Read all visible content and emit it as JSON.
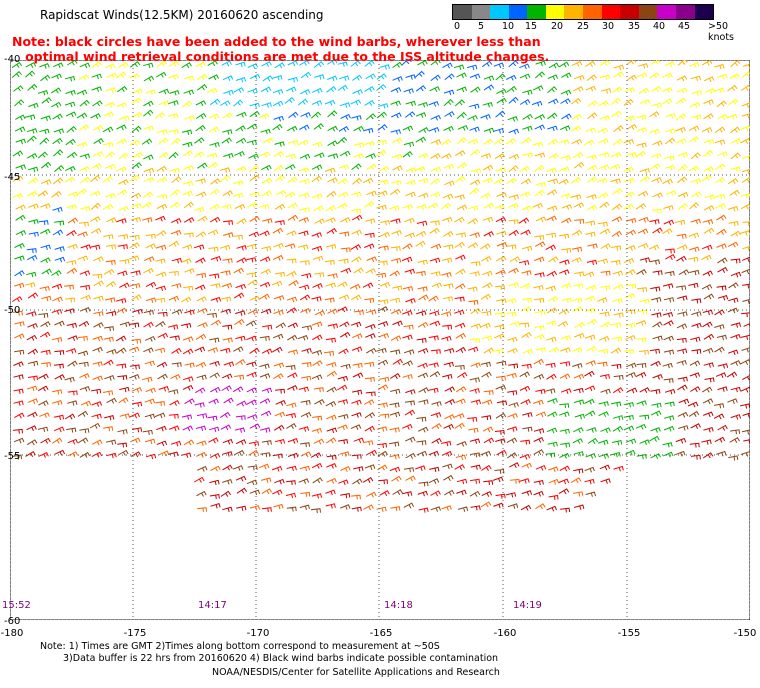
{
  "title": "Rapidscat Winds(12.5KM) 20160620 ascending",
  "note_line1": "Note: black circles have been added to the wind barbs, wherever less than",
  "note_line2": "optimal wind retrieval conditions are met due to the ISS altitude changes.",
  "legend": {
    "labels": [
      "0",
      "5",
      "10",
      "15",
      "20",
      "25",
      "30",
      "35",
      "40",
      "45",
      ">50 knots"
    ],
    "colors": [
      "#555555",
      "#888888",
      "#00c8ff",
      "#0064ff",
      "#00b400",
      "#ffff00",
      "#ffb400",
      "#ff6400",
      "#ff0000",
      "#c80000",
      "#8b4513",
      "#c800c8",
      "#8b008b",
      "#1a004d"
    ]
  },
  "axes": {
    "lon_labels": [
      "-180",
      "-175",
      "-170",
      "-165",
      "-160",
      "-155",
      "-150"
    ],
    "lat_labels": [
      "-40",
      "-45",
      "-50",
      "-55",
      "-60"
    ]
  },
  "pass_times": [
    "15:52",
    "14:17",
    "14:18",
    "14:19"
  ],
  "footnote_line1": "Note: 1) Times are GMT 2)Times along bottom correspond to measurement at ~50S",
  "footnote_line2": "3)Data buffer is 22 hrs from 20160620 4) Black wind barbs indicate possible contamination",
  "credit": "NOAA/NESDIS/Center for Satellite Applications and Research"
}
